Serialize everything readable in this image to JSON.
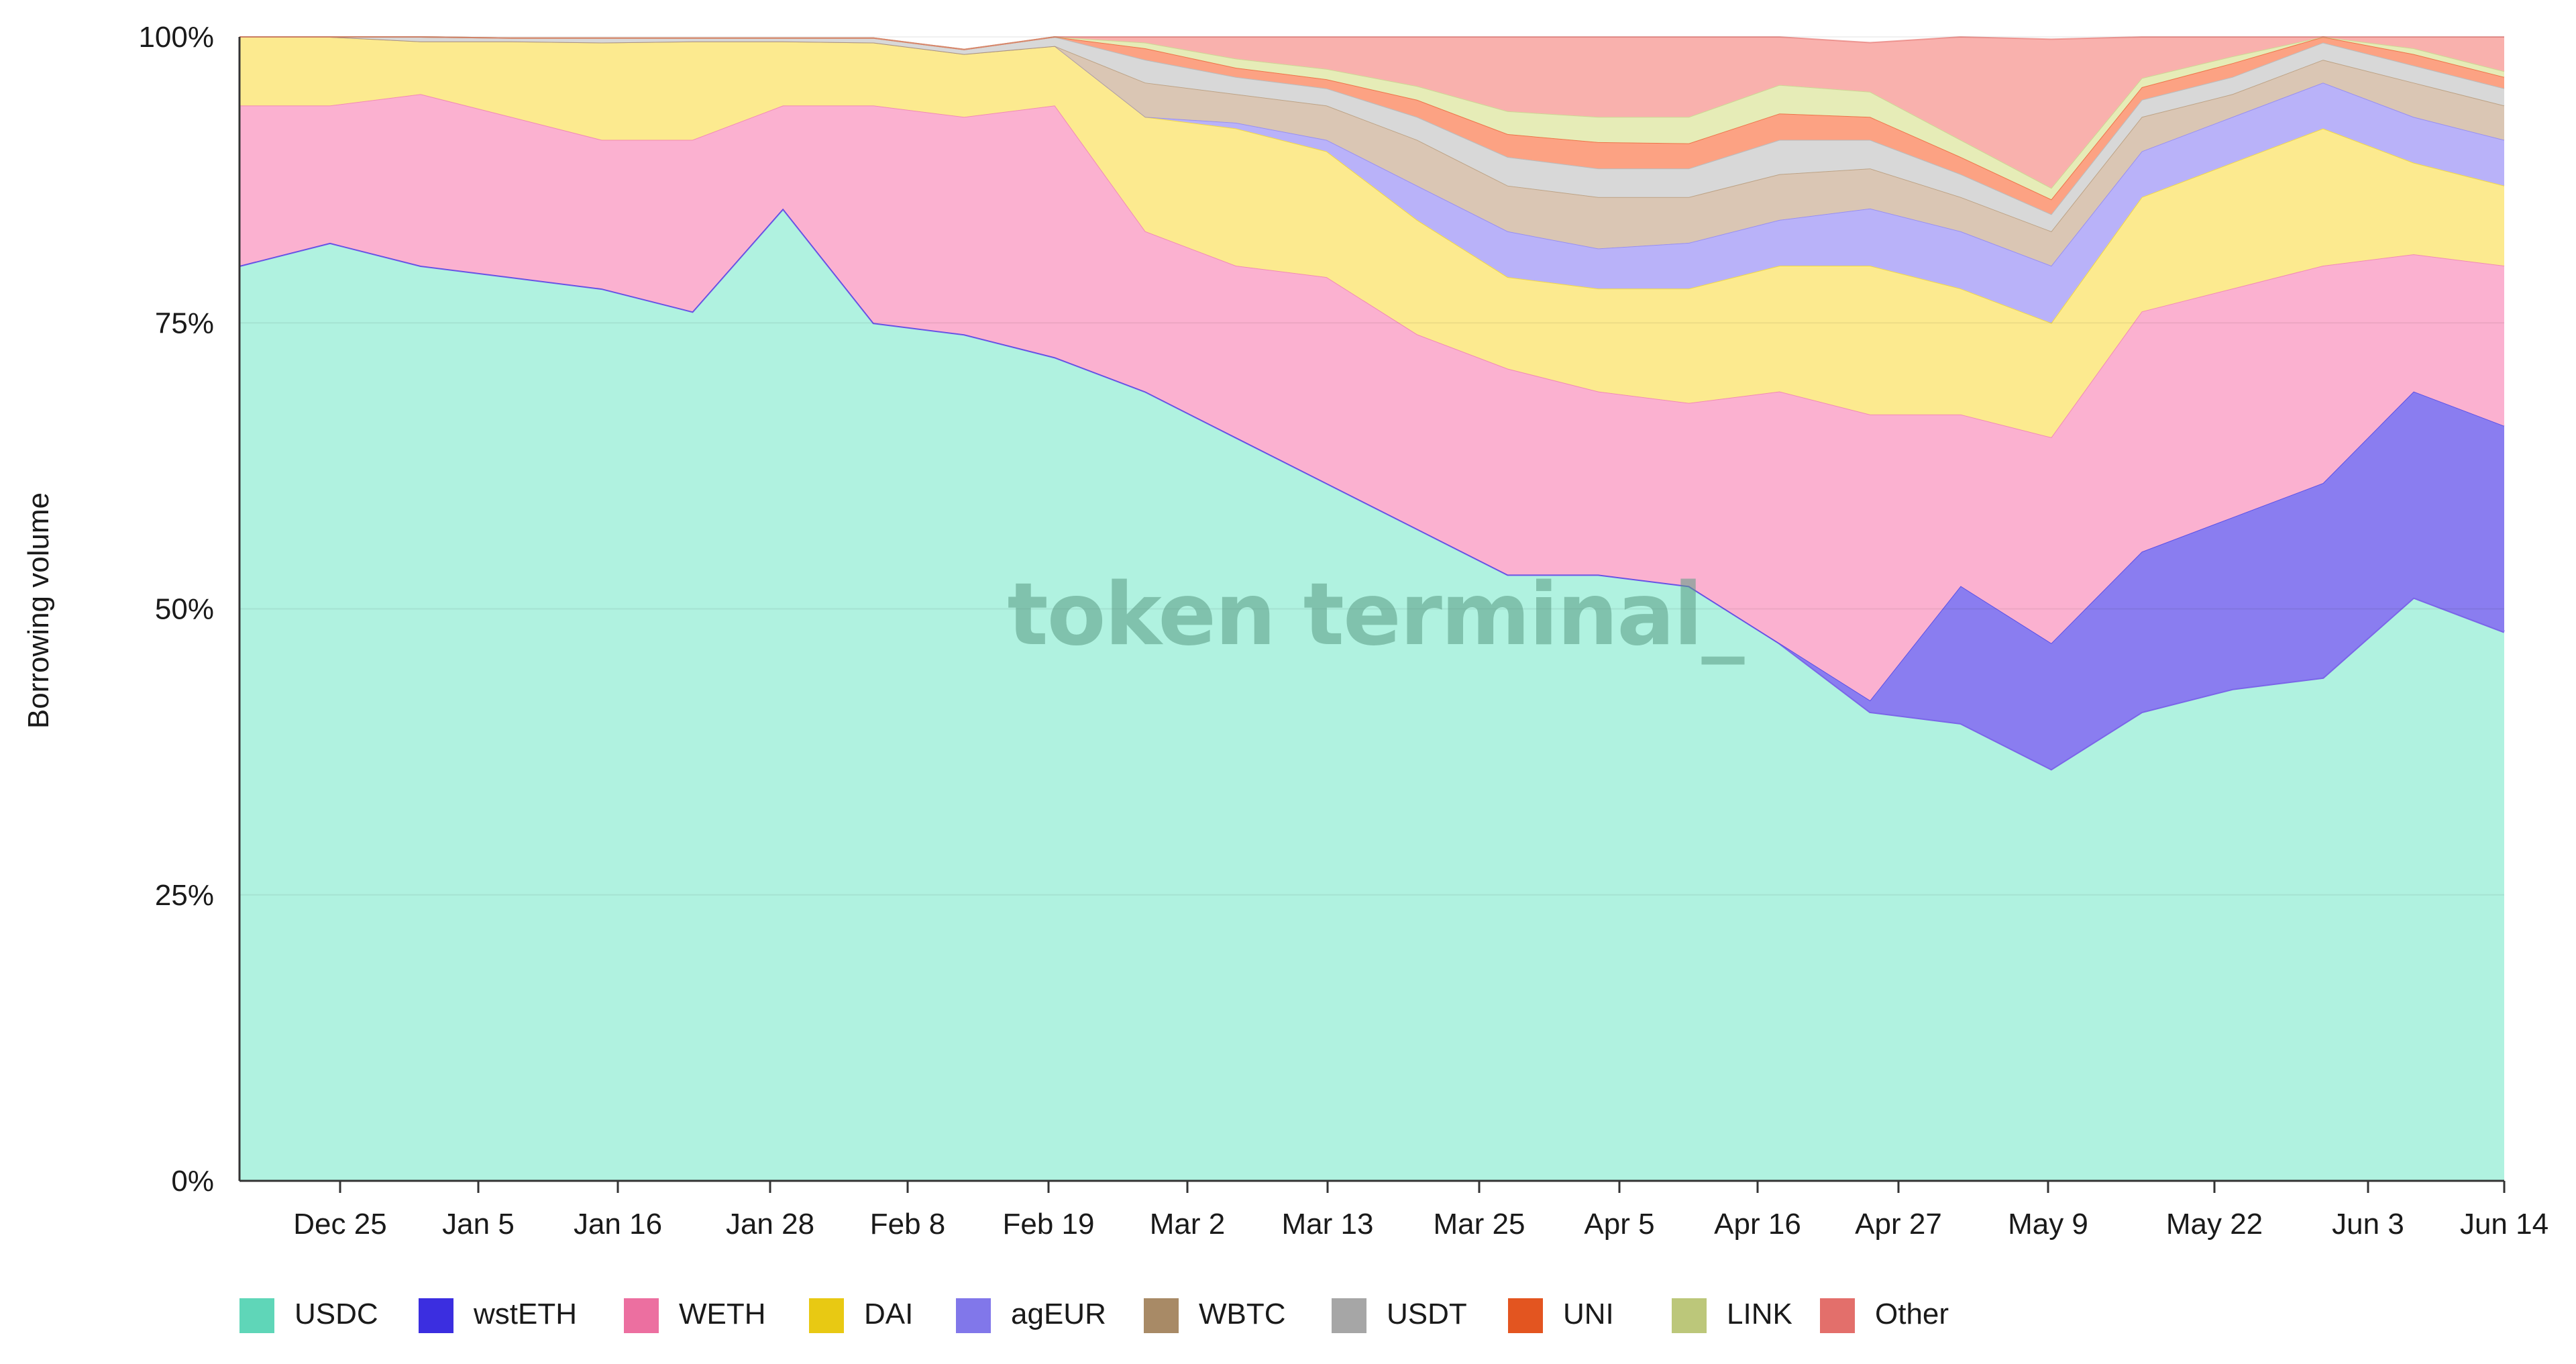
{
  "chart_data": {
    "type": "area",
    "stacked": true,
    "normalized": true,
    "ylabel": "Borrowing volume",
    "ylim": [
      0,
      100
    ],
    "y_ticks": [
      "0%",
      "25%",
      "50%",
      "75%",
      "100%"
    ],
    "x_ticks": [
      "Dec 25",
      "Jan 5",
      "Jan 16",
      "Jan 28",
      "Feb 8",
      "Feb 19",
      "Mar 2",
      "Mar 13",
      "Mar 25",
      "Apr 5",
      "Apr 16",
      "Apr 27",
      "May 9",
      "May 22",
      "Jun 3",
      "Jun 14"
    ],
    "watermark": "token terminal_",
    "legend_position": "bottom",
    "x": [
      "Dec 17",
      "Dec 25",
      "Jan 5",
      "Jan 16",
      "Jan 28",
      "Feb 8",
      "Feb 19",
      "Mar 2",
      "Mar 13",
      "Mar 20",
      "Mar 25",
      "Apr 1",
      "Apr 5",
      "Apr 10",
      "Apr 16",
      "Apr 22",
      "Apr 27",
      "May 3",
      "May 9",
      "May 13",
      "May 17",
      "May 22",
      "May 28",
      "Jun 3",
      "Jun 8",
      "Jun 14"
    ],
    "series": [
      {
        "name": "USDC",
        "color": "#b0f2e0",
        "legend_color": "#5fd6b8",
        "values": [
          80,
          82,
          80,
          79,
          78,
          76,
          85,
          75,
          74,
          72,
          69,
          65,
          61,
          57,
          53,
          53,
          52,
          47,
          41,
          40,
          36,
          41,
          43,
          44,
          51,
          48
        ]
      },
      {
        "name": "wstETH",
        "color": "#8a7df0",
        "legend_color": "#3b2ee0",
        "values": [
          0,
          0,
          0,
          0,
          0,
          0,
          0,
          0,
          0,
          0,
          0,
          0,
          0,
          0,
          0,
          0,
          0,
          0,
          1,
          12,
          11,
          14,
          15,
          17,
          18,
          18
        ]
      },
      {
        "name": "WETH",
        "color": "#fbb1d0",
        "legend_color": "#ec6fa0",
        "values": [
          14,
          12,
          15,
          14,
          13,
          15,
          9,
          19,
          19,
          22,
          14,
          15,
          18,
          17,
          18,
          16,
          16,
          22,
          25,
          15,
          18,
          21,
          20,
          19,
          12,
          14
        ]
      },
      {
        "name": "DAI",
        "color": "#fcea8f",
        "legend_color": "#e8c913",
        "values": [
          6,
          6,
          4.6,
          6.6,
          8.5,
          8.6,
          5.6,
          5.5,
          5.5,
          5.2,
          10,
          12,
          11,
          10,
          8,
          9,
          10,
          11,
          13,
          11,
          10,
          10,
          11,
          12,
          8,
          7
        ]
      },
      {
        "name": "agEUR",
        "color": "#b9b2f9",
        "legend_color": "#8177ea",
        "values": [
          0,
          0,
          0,
          0,
          0,
          0,
          0,
          0,
          0,
          0,
          0,
          0.5,
          1,
          3,
          4,
          3.5,
          4,
          4,
          5,
          5,
          5,
          4,
          4,
          4,
          4,
          4
        ]
      },
      {
        "name": "WBTC",
        "color": "#dac6b4",
        "legend_color": "#a88a66",
        "values": [
          0,
          0,
          0,
          0,
          0,
          0,
          0,
          0,
          0,
          0,
          3,
          2.5,
          3,
          4,
          4,
          4.5,
          4,
          4,
          3.5,
          3,
          3,
          3,
          2,
          2,
          3,
          3
        ]
      },
      {
        "name": "USDT",
        "color": "#d8d8d8",
        "legend_color": "#a6a6a6",
        "values": [
          0,
          0,
          0.4,
          0.3,
          0.4,
          0.3,
          0.3,
          0.4,
          0.4,
          0.8,
          2,
          1.5,
          1.5,
          2,
          2.5,
          2.5,
          2.5,
          3,
          2.5,
          2,
          1.5,
          1.5,
          1.5,
          1.5,
          1.5,
          1.5
        ]
      },
      {
        "name": "UNI",
        "color": "#fca283",
        "legend_color": "#e35520",
        "values": [
          0,
          0,
          0,
          0,
          0,
          0,
          0,
          0,
          0,
          0,
          1,
          0.8,
          0.8,
          1.5,
          2,
          2.3,
          2.2,
          2.3,
          2,
          1.5,
          1.3,
          1.1,
          1.2,
          1.2,
          1,
          1
        ]
      },
      {
        "name": "LINK",
        "color": "#e6ecb7",
        "legend_color": "#bcc77a",
        "values": [
          0,
          0,
          0,
          0,
          0,
          0,
          0,
          0,
          0,
          0,
          0.5,
          0.8,
          0.9,
          1.2,
          2,
          2.2,
          2.3,
          2.5,
          2.2,
          1.5,
          1,
          0.8,
          0.6,
          0.5,
          0.5,
          0.5
        ]
      },
      {
        "name": "Other",
        "color": "#f9b1ad",
        "legend_color": "#e36f6b",
        "values": [
          0,
          0,
          0,
          0,
          0,
          0,
          0,
          0,
          0,
          0,
          0.5,
          2,
          3,
          4.3,
          6.5,
          7,
          7,
          4.2,
          4.3,
          9,
          13,
          7.1,
          2.7,
          -1.2,
          1,
          3
        ]
      }
    ]
  }
}
